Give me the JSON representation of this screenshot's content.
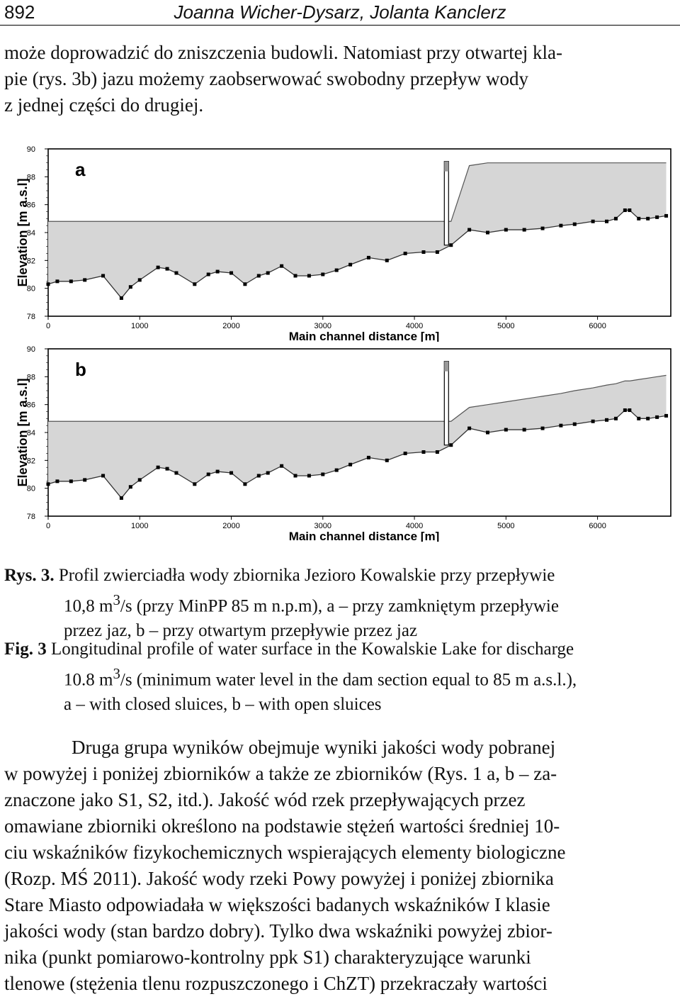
{
  "header": {
    "page_number": "892",
    "authors": "Joanna Wicher-Dysarz, Jolanta Kanclerz"
  },
  "intro_lines": [
    "może doprowadzić do zniszczenia budowli. Natomiast przy otwartej kla-",
    "pie (rys. 3b) jazu możemy zaobserwować swobodny przepływ wody",
    "z jednej części do drugiej."
  ],
  "chart_data": [
    {
      "type": "area",
      "panel_label": "a",
      "xlabel": "Main channel distance [m]",
      "ylabel": "Elevation [m a.s.l]",
      "xlim": [
        0,
        6800
      ],
      "ylim": [
        78,
        90
      ],
      "x_ticks": [
        "0",
        "1000",
        "2000",
        "3000",
        "4000",
        "5000",
        "6000"
      ],
      "y_ticks": [
        "78",
        "80",
        "82",
        "84",
        "86",
        "88",
        "90"
      ],
      "series": [
        {
          "x": [
            0,
            100,
            250,
            400,
            600,
            800,
            900,
            1000,
            1200,
            1300,
            1400,
            1600,
            1750,
            1850,
            2000,
            2150,
            2300,
            2400,
            2550,
            2700,
            2850,
            3000,
            3150,
            3300,
            3500,
            3700,
            3900,
            4100,
            4250,
            4400,
            4600,
            4800,
            5000,
            5200,
            5400,
            5600,
            5750,
            5950,
            6100,
            6200,
            6300,
            6350,
            6450,
            6550,
            6650,
            6750
          ],
          "ground": [
            80.3,
            80.5,
            80.5,
            80.6,
            80.9,
            79.3,
            80.1,
            80.6,
            81.5,
            81.4,
            81.1,
            80.3,
            81.0,
            81.2,
            81.1,
            80.3,
            80.9,
            81.1,
            81.6,
            80.9,
            80.9,
            81.0,
            81.3,
            81.7,
            82.2,
            82.0,
            82.5,
            82.6,
            82.6,
            83.1,
            84.2,
            84.0,
            84.2,
            84.2,
            84.3,
            84.5,
            84.6,
            84.8,
            84.8,
            85.0,
            85.6,
            85.6,
            85.0,
            85.0,
            85.1,
            85.2
          ],
          "water": [
            84.8,
            84.8,
            84.8,
            84.8,
            84.8,
            84.8,
            84.8,
            84.8,
            84.8,
            84.8,
            84.8,
            84.8,
            84.8,
            84.8,
            84.8,
            84.8,
            84.8,
            84.8,
            84.8,
            84.8,
            84.8,
            84.8,
            84.8,
            84.8,
            84.8,
            84.8,
            84.8,
            84.8,
            84.8,
            84.8,
            88.8,
            89.0,
            89.0,
            89.0,
            89.0,
            89.0,
            89.0,
            89.0,
            89.0,
            89.0,
            89.0,
            89.0,
            89.0,
            89.0,
            89.0,
            89.0
          ]
        }
      ],
      "dam": {
        "x": 4350,
        "top": 89.1
      },
      "grid": false
    },
    {
      "type": "area",
      "panel_label": "b",
      "xlabel": "Main channel distance [m]",
      "ylabel": "Elevation [m a.s.l]",
      "xlim": [
        0,
        6800
      ],
      "ylim": [
        78,
        90
      ],
      "x_ticks": [
        "0",
        "1000",
        "2000",
        "3000",
        "4000",
        "5000",
        "6000"
      ],
      "y_ticks": [
        "78",
        "80",
        "82",
        "84",
        "86",
        "88",
        "90"
      ],
      "series": [
        {
          "x": [
            0,
            100,
            250,
            400,
            600,
            800,
            900,
            1000,
            1200,
            1300,
            1400,
            1600,
            1750,
            1850,
            2000,
            2150,
            2300,
            2400,
            2550,
            2700,
            2850,
            3000,
            3150,
            3300,
            3500,
            3700,
            3900,
            4100,
            4250,
            4400,
            4600,
            4800,
            5000,
            5200,
            5400,
            5600,
            5750,
            5950,
            6100,
            6200,
            6300,
            6350,
            6450,
            6550,
            6650,
            6750
          ],
          "ground": [
            80.3,
            80.5,
            80.5,
            80.6,
            80.9,
            79.3,
            80.1,
            80.6,
            81.5,
            81.4,
            81.1,
            80.3,
            81.0,
            81.2,
            81.1,
            80.3,
            80.9,
            81.1,
            81.6,
            80.9,
            80.9,
            81.0,
            81.3,
            81.7,
            82.2,
            82.0,
            82.5,
            82.6,
            82.6,
            83.1,
            84.3,
            84.0,
            84.2,
            84.2,
            84.3,
            84.5,
            84.6,
            84.8,
            84.9,
            85.0,
            85.6,
            85.6,
            85.0,
            85.0,
            85.1,
            85.2
          ],
          "water": [
            84.8,
            84.8,
            84.8,
            84.8,
            84.8,
            84.8,
            84.8,
            84.8,
            84.8,
            84.8,
            84.8,
            84.8,
            84.8,
            84.8,
            84.8,
            84.8,
            84.8,
            84.8,
            84.8,
            84.8,
            84.8,
            84.8,
            84.8,
            84.8,
            84.8,
            84.8,
            84.8,
            84.8,
            84.8,
            84.8,
            85.8,
            86.0,
            86.2,
            86.4,
            86.6,
            86.8,
            87.0,
            87.2,
            87.4,
            87.5,
            87.7,
            87.7,
            87.8,
            87.9,
            88.0,
            88.1
          ]
        }
      ],
      "dam": {
        "x": 4350,
        "top": 89.1
      },
      "grid": false
    }
  ],
  "caption_pl": [
    "Rys. 3.",
    "Profil zwierciadła wody zbiornika Jezioro Kowalskie przy przepływie",
    "10,8 m",
    "3",
    "/s (przy MinPP 85 m n.p.m), a – przy zamkniętym przepływie",
    "przez jaz, b – przy otwartym przepływie przez jaz"
  ],
  "caption_en": [
    "Fig. 3",
    "Longitudinal profile of water surface in the Kowalskie Lake for discharge",
    "10.8 m",
    "3",
    "/s (minimum water level in the dam section equal to 85 m a.s.l.),",
    "a – with closed sluices, b – with open sluices"
  ],
  "body_lines": [
    "Druga grupa wyników obejmuje wyniki jakości wody pobranej",
    "w powyżej i poniżej zbiorników a także ze zbiorników (Rys. 1 a, b – za-",
    "znaczone jako S1, S2, itd.). Jakość wód rzek przepływających przez",
    "omawiane zbiorniki określono na podstawie stężeń wartości średniej 10-",
    "ciu wskaźników fizykochemicznych wspierających elementy biologiczne",
    "(Rozp. MŚ 2011). Jakość wody rzeki Powy powyżej i poniżej zbiornika",
    "Stare Miasto odpowiadała w większości badanych wskaźników I klasie",
    "jakości wody (stan bardzo dobry). Tylko dwa wskaźniki powyżej zbior-",
    "nika (punkt pomiarowo-kontrolny ppk S1) charakteryzujące warunki",
    "tlenowe (stężenia tlenu rozpuszczonego i ChZT) przekraczały wartości"
  ]
}
